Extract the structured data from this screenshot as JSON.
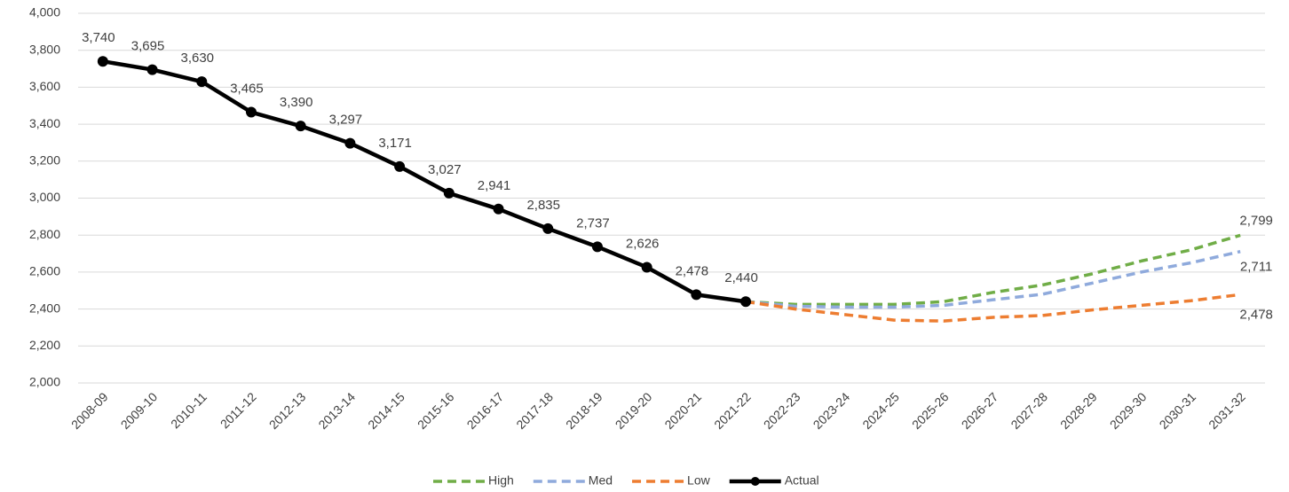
{
  "chart_data": {
    "type": "line",
    "categories": [
      "2008-09",
      "2009-10",
      "2010-11",
      "2011-12",
      "2012-13",
      "2013-14",
      "2014-15",
      "2015-16",
      "2016-17",
      "2017-18",
      "2018-19",
      "2019-20",
      "2020-21",
      "2021-22",
      "2022-23",
      "2023-24",
      "2024-25",
      "2025-26",
      "2026-27",
      "2027-28",
      "2028-29",
      "2029-30",
      "2030-31",
      "2031-32"
    ],
    "series": [
      {
        "name": "High",
        "color": "#70ad47",
        "dashed": true,
        "values": [
          null,
          null,
          null,
          null,
          null,
          null,
          null,
          null,
          null,
          null,
          null,
          null,
          null,
          2440,
          2425,
          2425,
          2425,
          2440,
          2490,
          2530,
          2590,
          2660,
          2720,
          2799
        ],
        "value_labels": [
          null,
          null,
          null,
          null,
          null,
          null,
          null,
          null,
          null,
          null,
          null,
          null,
          null,
          null,
          null,
          null,
          null,
          null,
          null,
          null,
          null,
          null,
          null,
          "2,799"
        ]
      },
      {
        "name": "Med",
        "color": "#8faadc",
        "dashed": true,
        "values": [
          null,
          null,
          null,
          null,
          null,
          null,
          null,
          null,
          null,
          null,
          null,
          null,
          null,
          2440,
          2415,
          2410,
          2410,
          2420,
          2450,
          2480,
          2540,
          2600,
          2650,
          2711
        ],
        "value_labels": [
          null,
          null,
          null,
          null,
          null,
          null,
          null,
          null,
          null,
          null,
          null,
          null,
          null,
          null,
          null,
          null,
          null,
          null,
          null,
          null,
          null,
          null,
          null,
          "2,711"
        ]
      },
      {
        "name": "Low",
        "color": "#ed7d31",
        "dashed": true,
        "values": [
          null,
          null,
          null,
          null,
          null,
          null,
          null,
          null,
          null,
          null,
          null,
          null,
          null,
          2440,
          2400,
          2370,
          2340,
          2335,
          2355,
          2365,
          2395,
          2420,
          2445,
          2478
        ],
        "value_labels": [
          null,
          null,
          null,
          null,
          null,
          null,
          null,
          null,
          null,
          null,
          null,
          null,
          null,
          null,
          null,
          null,
          null,
          null,
          null,
          null,
          null,
          null,
          null,
          "2,478"
        ]
      },
      {
        "name": "Actual",
        "color": "#000000",
        "dashed": false,
        "markers": true,
        "values": [
          3740,
          3695,
          3630,
          3465,
          3390,
          3297,
          3171,
          3027,
          2941,
          2835,
          2737,
          2626,
          2478,
          2440,
          null,
          null,
          null,
          null,
          null,
          null,
          null,
          null,
          null,
          null
        ],
        "value_labels": [
          "3,740",
          "3,695",
          "3,630",
          "3,465",
          "3,390",
          "3,297",
          "3,171",
          "3,027",
          "2,941",
          "2,835",
          "2,737",
          "2,626",
          "2,478",
          "2,440",
          null,
          null,
          null,
          null,
          null,
          null,
          null,
          null,
          null,
          null
        ]
      }
    ],
    "ylim": [
      2000,
      4000
    ],
    "yticks": [
      {
        "value": 2000,
        "label": "2,000"
      },
      {
        "value": 2200,
        "label": "2,200"
      },
      {
        "value": 2400,
        "label": "2,400"
      },
      {
        "value": 2600,
        "label": "2,600"
      },
      {
        "value": 2800,
        "label": "2,800"
      },
      {
        "value": 3000,
        "label": "3,000"
      },
      {
        "value": 3200,
        "label": "3,200"
      },
      {
        "value": 3400,
        "label": "3,400"
      },
      {
        "value": 3600,
        "label": "3,600"
      },
      {
        "value": 3800,
        "label": "3,800"
      },
      {
        "value": 4000,
        "label": "4,000"
      }
    ],
    "grid": true,
    "legend": "bottom"
  }
}
